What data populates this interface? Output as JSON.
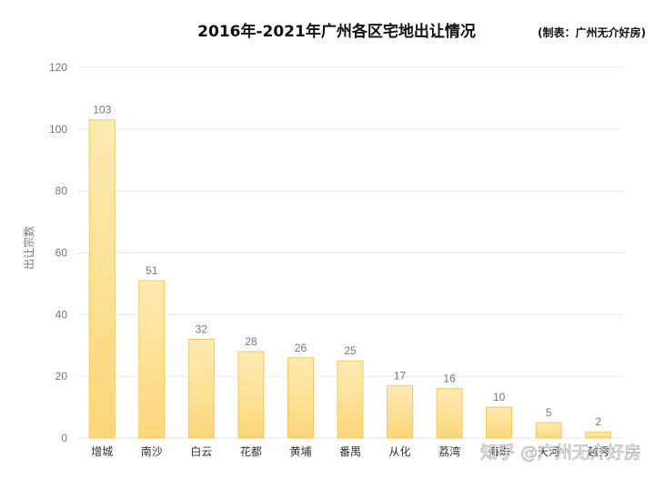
{
  "chart_data": {
    "type": "bar",
    "title": "2016年-2021年广州各区宅地出让情况",
    "credit": "(制表：广州无介好房)",
    "ylabel": "出让宗数",
    "xlabel": "",
    "ylim": [
      0,
      120
    ],
    "yticks": [
      0,
      20,
      40,
      60,
      80,
      100,
      120
    ],
    "grid": true,
    "categories": [
      "增城",
      "南沙",
      "白云",
      "花都",
      "黄埔",
      "番禺",
      "从化",
      "荔湾",
      "海珠",
      "天河",
      "越秀"
    ],
    "values": [
      103,
      51,
      32,
      28,
      26,
      25,
      17,
      16,
      10,
      5,
      2
    ],
    "colors": {
      "bar_top": "#fdebb3",
      "bar_bottom": "#fcd67a",
      "bar_stroke": "#f7c85a",
      "grid": "#e6e6e6"
    }
  },
  "watermark": "知乎 @广州无介好房"
}
